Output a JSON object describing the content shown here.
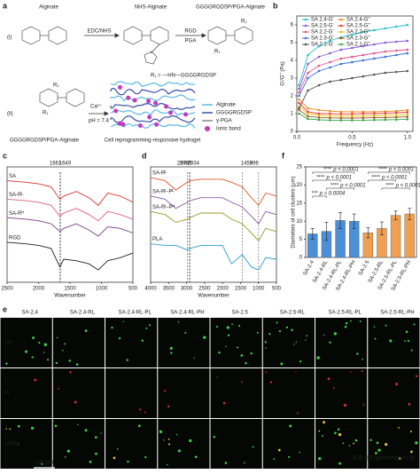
{
  "panel_a": {
    "label": "a",
    "step_i": "(i)",
    "step_ii": "(ii)",
    "alginate": "Alginate",
    "nhs_alginate": "NHS-Alginate",
    "product": "GGGGRGDSP/PGA-Alginate",
    "reagent_1": "EDC/NHS",
    "reagent_2": "RGD",
    "reagent_3": "PGA",
    "r1": "R₁",
    "r2": "R₂",
    "r1_def": "R₁ = —HN—GGGGRGDSP",
    "ca": "Ca²⁺",
    "ph": "pH = 7.4",
    "gel_left": "GGGGRGDSP/PGA-Alginate",
    "gel_right": "Cell reprogramming-responsive hydrogel",
    "legend": [
      "Alginate",
      "GGGGRGDSP",
      "γ-PGA",
      "Ionic bond"
    ]
  },
  "chart_data": [
    {
      "type": "line",
      "label": "b",
      "x_label": "Frequency (Hz)",
      "y_label": "G'/G'' (Pa)",
      "markers": true,
      "xlim": [
        0,
        1.05
      ],
      "ylim": [
        0,
        6.5
      ],
      "xticks": [
        {
          "value": 0,
          "label": "0.0"
        },
        {
          "value": 0.5,
          "label": "0.5"
        },
        {
          "value": 1,
          "label": "1.0"
        }
      ],
      "yticks": [
        0,
        1,
        2,
        3,
        4,
        5,
        6
      ],
      "x": [
        0.02,
        0.1,
        0.2,
        0.3,
        0.4,
        0.5,
        0.6,
        0.7,
        0.8,
        0.9,
        1.0
      ],
      "series": [
        {
          "name": "SA 2.4-G'",
          "color": "#22c3c8",
          "values": [
            2.6,
            4.3,
            4.8,
            5.1,
            5.3,
            5.45,
            5.6,
            5.7,
            5.8,
            5.9,
            6.0
          ]
        },
        {
          "name": "SA 2.4-G''",
          "color": "#f08a24",
          "values": [
            1.8,
            1.3,
            1.2,
            1.15,
            1.1,
            1.1,
            1.1,
            1.1,
            1.12,
            1.15,
            1.2
          ]
        },
        {
          "name": "SA 2.5-G'",
          "color": "#8a5ad8",
          "values": [
            2.4,
            3.8,
            4.2,
            4.4,
            4.6,
            4.7,
            4.8,
            4.9,
            5.0,
            5.05,
            5.1
          ]
        },
        {
          "name": "SA 2.5-G''",
          "color": "#e23b3b",
          "values": [
            1.6,
            1.1,
            1.0,
            1.0,
            0.98,
            0.98,
            1.0,
            1.0,
            1.02,
            1.05,
            1.08
          ]
        },
        {
          "name": "SA 2.2-G'",
          "color": "#e8508a",
          "values": [
            2.2,
            3.3,
            3.7,
            3.9,
            4.1,
            4.2,
            4.3,
            4.4,
            4.5,
            4.55,
            4.6
          ]
        },
        {
          "name": "SA 2.2-G''",
          "color": "#e6c21e",
          "values": [
            1.4,
            1.0,
            0.9,
            0.88,
            0.86,
            0.86,
            0.87,
            0.88,
            0.9,
            0.92,
            0.95
          ]
        },
        {
          "name": "SA 2.3-G'",
          "color": "#3a6fd8",
          "values": [
            2.0,
            3.0,
            3.4,
            3.6,
            3.8,
            3.9,
            4.0,
            4.1,
            4.2,
            4.3,
            4.4
          ]
        },
        {
          "name": "SA 2.3-G''",
          "color": "#9b5a2a",
          "values": [
            1.2,
            0.85,
            0.78,
            0.76,
            0.75,
            0.75,
            0.76,
            0.77,
            0.78,
            0.8,
            0.82
          ]
        },
        {
          "name": "SA 2.1-G'",
          "color": "#555555",
          "values": [
            1.3,
            2.3,
            2.6,
            2.8,
            2.9,
            3.0,
            3.1,
            3.2,
            3.3,
            3.35,
            3.4
          ]
        },
        {
          "name": "SA 2.1-G''",
          "color": "#3aa845",
          "values": [
            1.0,
            0.7,
            0.65,
            0.63,
            0.62,
            0.62,
            0.63,
            0.64,
            0.65,
            0.66,
            0.68
          ]
        }
      ]
    },
    {
      "type": "spectra",
      "label": "c",
      "x_label": "Wavenumber",
      "xlim": [
        2500,
        500
      ],
      "ylim": [
        2,
        9.5
      ],
      "xticks": [
        2500,
        2000,
        1500,
        1000,
        500
      ],
      "peaks": [
        1661,
        1649
      ],
      "x": [
        2500,
        2200,
        2000,
        1800,
        1661,
        1600,
        1400,
        1200,
        1050,
        900,
        700,
        500
      ],
      "series": [
        {
          "name": "SA",
          "color": "#d9302c",
          "values": [
            8.6,
            8.5,
            8.4,
            8.2,
            7.4,
            7.6,
            7.9,
            7.5,
            7.0,
            7.8,
            7.6,
            7.2
          ]
        },
        {
          "name": "SA-Rᴸ",
          "color": "#e0607e",
          "values": [
            7.4,
            7.3,
            7.2,
            7.0,
            6.3,
            6.5,
            6.8,
            6.4,
            6.0,
            6.6,
            6.4,
            6.1
          ]
        },
        {
          "name": "SA-Rᴴ",
          "color": "#7a3f86",
          "values": [
            6.2,
            6.1,
            6.0,
            5.8,
            5.3,
            5.5,
            5.8,
            5.4,
            5.0,
            5.6,
            5.5,
            5.2
          ]
        },
        {
          "name": "RGD",
          "color": "#222222",
          "values": [
            4.6,
            4.5,
            4.4,
            4.2,
            3.0,
            3.5,
            3.4,
            3.2,
            2.8,
            3.4,
            3.6,
            3.9
          ]
        }
      ]
    },
    {
      "type": "spectra",
      "label": "d",
      "x_label": "Wavenumber",
      "xlim": [
        4000,
        500
      ],
      "ylim": [
        2,
        9.5
      ],
      "xticks": [
        4000,
        3500,
        3000,
        2500,
        2000,
        1500,
        1000,
        500
      ],
      "peaks": [
        2978,
        2934,
        2905,
        1453,
        996
      ],
      "x": [
        4000,
        3600,
        3300,
        2978,
        2905,
        2600,
        2000,
        1750,
        1453,
        1200,
        996,
        800,
        500
      ],
      "series": [
        {
          "name": "SA-Rᴸ",
          "color": "#e0552c",
          "values": [
            8.8,
            8.6,
            8.0,
            8.5,
            8.6,
            8.7,
            8.7,
            8.5,
            8.2,
            7.5,
            7.0,
            7.8,
            7.6
          ]
        },
        {
          "name": "SA-Rᴸ-Pᴸ",
          "color": "#8b5aa8",
          "values": [
            7.6,
            7.4,
            6.8,
            7.2,
            7.3,
            7.5,
            7.5,
            7.2,
            6.9,
            6.3,
            5.8,
            6.6,
            6.4
          ]
        },
        {
          "name": "SA-Rᴸ-Pᴴ",
          "color": "#9a9a2a",
          "values": [
            6.6,
            6.4,
            5.9,
            6.1,
            6.2,
            6.5,
            6.5,
            6.1,
            5.8,
            5.2,
            4.7,
            5.5,
            5.3
          ]
        },
        {
          "name": "PLA",
          "color": "#2a9fd0",
          "values": [
            4.5,
            4.4,
            4.4,
            4.1,
            4.2,
            4.4,
            4.4,
            3.2,
            3.8,
            3.0,
            2.8,
            3.6,
            3.5
          ]
        }
      ]
    },
    {
      "type": "bar",
      "label": "f",
      "y_label": "Diameters of cell clusters (μm)",
      "ylim": [
        0,
        25
      ],
      "yticks": [
        0,
        5,
        10,
        15,
        20,
        25
      ],
      "categories": [
        "SA-2.4",
        "SA-2.4-RL",
        "SA-2.4-RL-PL",
        "SA-2.4-RL-PH",
        "SA-2.5",
        "SA-2.5-RL",
        "SA-2.5-RL-PL",
        "SA-2.5-RL-PH"
      ],
      "values": [
        6.5,
        7.2,
        10.2,
        10.0,
        6.8,
        8.0,
        11.6,
        12.0
      ],
      "errors": [
        1.5,
        2.5,
        2.2,
        2.0,
        1.4,
        1.8,
        1.2,
        1.6
      ],
      "colors": [
        "#4a8fd8",
        "#4a8fd8",
        "#4a8fd8",
        "#4a8fd8",
        "#f0a050",
        "#f0a050",
        "#f0a050",
        "#f0a050"
      ],
      "significance": [
        {
          "stars": "****",
          "p": "p < 0.0001"
        },
        {
          "stars": "****",
          "p": "p < 0.0001"
        },
        {
          "stars": "****",
          "p": "p < 0.0001"
        },
        {
          "stars": "***",
          "p": "p = 0.0004"
        },
        {
          "stars": "****",
          "p": "p < 0.0001"
        },
        {
          "stars": "****",
          "p": "p < 0.0001"
        },
        {
          "stars": "****",
          "p": "p < 0.0001"
        }
      ]
    }
  ],
  "panel_e": {
    "label": "e",
    "columns": [
      "SA-2.4",
      "SA-2.4-RL",
      "SA-2.4-RL-PL",
      "SA-2.4-RL-PH",
      "SA-2.5",
      "SA-2.5-RL",
      "SA-2.5-RL-PL",
      "SA-2.5-RL-PH"
    ],
    "rows": [
      "AM",
      "PI",
      "AM/PI"
    ],
    "scale_bar": "100 μm",
    "watermark": "头条 @EngineeringForLife"
  }
}
